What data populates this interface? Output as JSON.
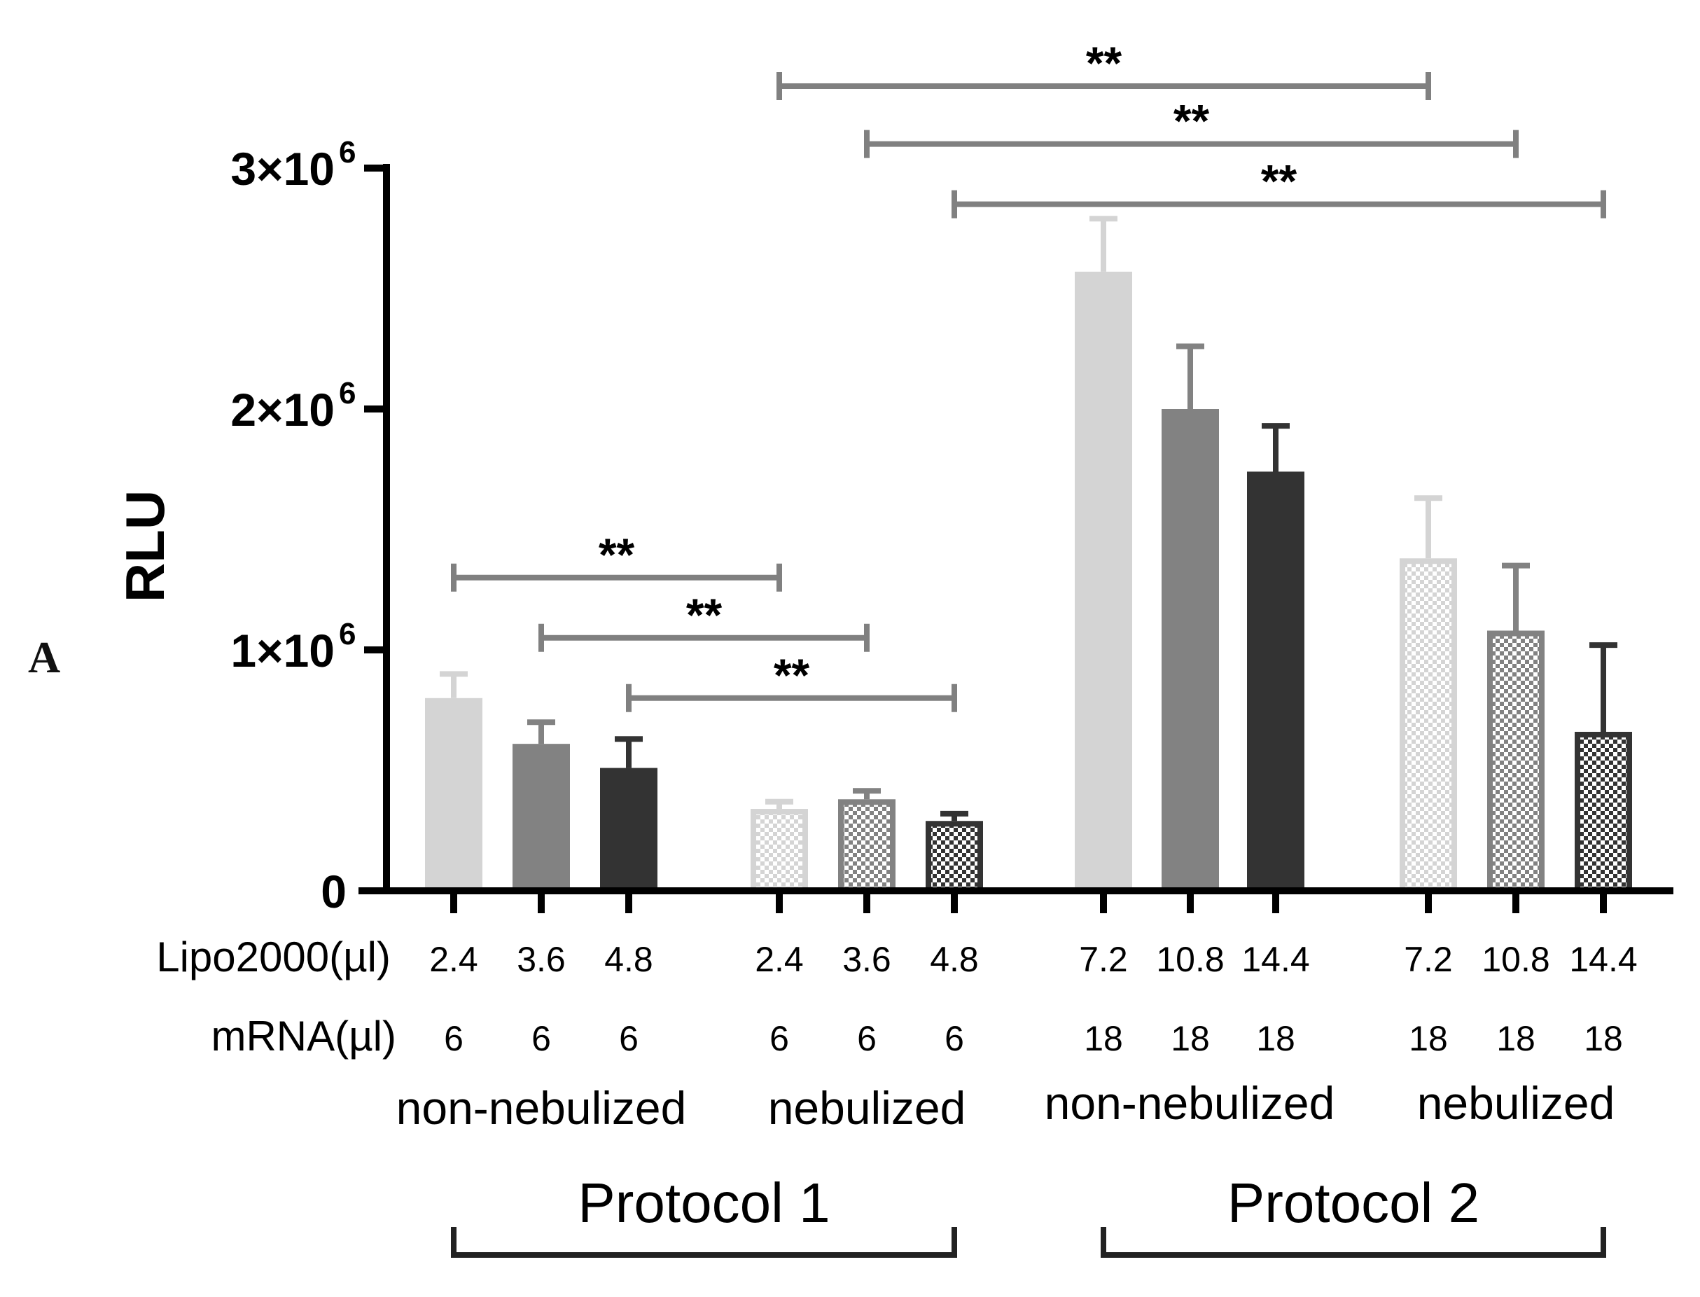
{
  "panel_label": "A",
  "chart_data": {
    "type": "bar",
    "ylabel": "RLU",
    "ylim": [
      0,
      3000000
    ],
    "yticks": [
      {
        "value": 0,
        "base": "0",
        "exp": ""
      },
      {
        "value": 1000000,
        "base": "1×10",
        "exp": "6"
      },
      {
        "value": 2000000,
        "base": "2×10",
        "exp": "6"
      },
      {
        "value": 3000000,
        "base": "3×10",
        "exp": "6"
      }
    ],
    "row_labels": {
      "lipo": "Lipo2000(µl)",
      "mrna": "mRNA(µl)"
    },
    "groups": [
      {
        "condition": "non-nebulized",
        "protocol": "Protocol 1",
        "nebulized": false,
        "bars": [
          {
            "lipo": "2.4",
            "mrna": "6",
            "value": 800000,
            "error": 100000,
            "shade": "light"
          },
          {
            "lipo": "3.6",
            "mrna": "6",
            "value": 610000,
            "error": 90000,
            "shade": "mid"
          },
          {
            "lipo": "4.8",
            "mrna": "6",
            "value": 510000,
            "error": 120000,
            "shade": "dark"
          }
        ]
      },
      {
        "condition": "nebulized",
        "protocol": "Protocol 1",
        "nebulized": true,
        "bars": [
          {
            "lipo": "2.4",
            "mrna": "6",
            "value": 340000,
            "error": 30000,
            "shade": "light"
          },
          {
            "lipo": "3.6",
            "mrna": "6",
            "value": 380000,
            "error": 35000,
            "shade": "mid"
          },
          {
            "lipo": "4.8",
            "mrna": "6",
            "value": 290000,
            "error": 30000,
            "shade": "dark"
          }
        ]
      },
      {
        "condition": "non-nebulized",
        "protocol": "Protocol 2",
        "nebulized": false,
        "bars": [
          {
            "lipo": "7.2",
            "mrna": "18",
            "value": 2570000,
            "error": 220000,
            "shade": "light"
          },
          {
            "lipo": "10.8",
            "mrna": "18",
            "value": 2000000,
            "error": 260000,
            "shade": "mid"
          },
          {
            "lipo": "14.4",
            "mrna": "18",
            "value": 1740000,
            "error": 190000,
            "shade": "dark"
          }
        ]
      },
      {
        "condition": "nebulized",
        "protocol": "Protocol 2",
        "nebulized": true,
        "bars": [
          {
            "lipo": "7.2",
            "mrna": "18",
            "value": 1380000,
            "error": 250000,
            "shade": "light"
          },
          {
            "lipo": "10.8",
            "mrna": "18",
            "value": 1080000,
            "error": 270000,
            "shade": "mid"
          },
          {
            "lipo": "14.4",
            "mrna": "18",
            "value": 660000,
            "error": 360000,
            "shade": "dark"
          }
        ]
      }
    ],
    "protocols": [
      {
        "label": "Protocol 1",
        "first_group": 0,
        "last_group": 1
      },
      {
        "label": "Protocol 2",
        "first_group": 2,
        "last_group": 3
      }
    ],
    "significance": [
      {
        "from": [
          0,
          0
        ],
        "to": [
          1,
          0
        ],
        "label": "**",
        "value": 1300000
      },
      {
        "from": [
          0,
          1
        ],
        "to": [
          1,
          1
        ],
        "label": "**",
        "value": 1050000
      },
      {
        "from": [
          0,
          2
        ],
        "to": [
          1,
          2
        ],
        "label": "**",
        "value": 800000
      },
      {
        "from": [
          1,
          0
        ],
        "to": [
          3,
          0
        ],
        "label": "**",
        "value": 3340000
      },
      {
        "from": [
          1,
          1
        ],
        "to": [
          3,
          1
        ],
        "label": "**",
        "value": 3100000
      },
      {
        "from": [
          1,
          2
        ],
        "to": [
          3,
          2
        ],
        "label": "**",
        "value": 2850000
      }
    ],
    "colors": {
      "light": "#d4d4d4",
      "mid": "#828282",
      "dark": "#333333",
      "bracket": "#808080",
      "axis": "#000000"
    }
  }
}
